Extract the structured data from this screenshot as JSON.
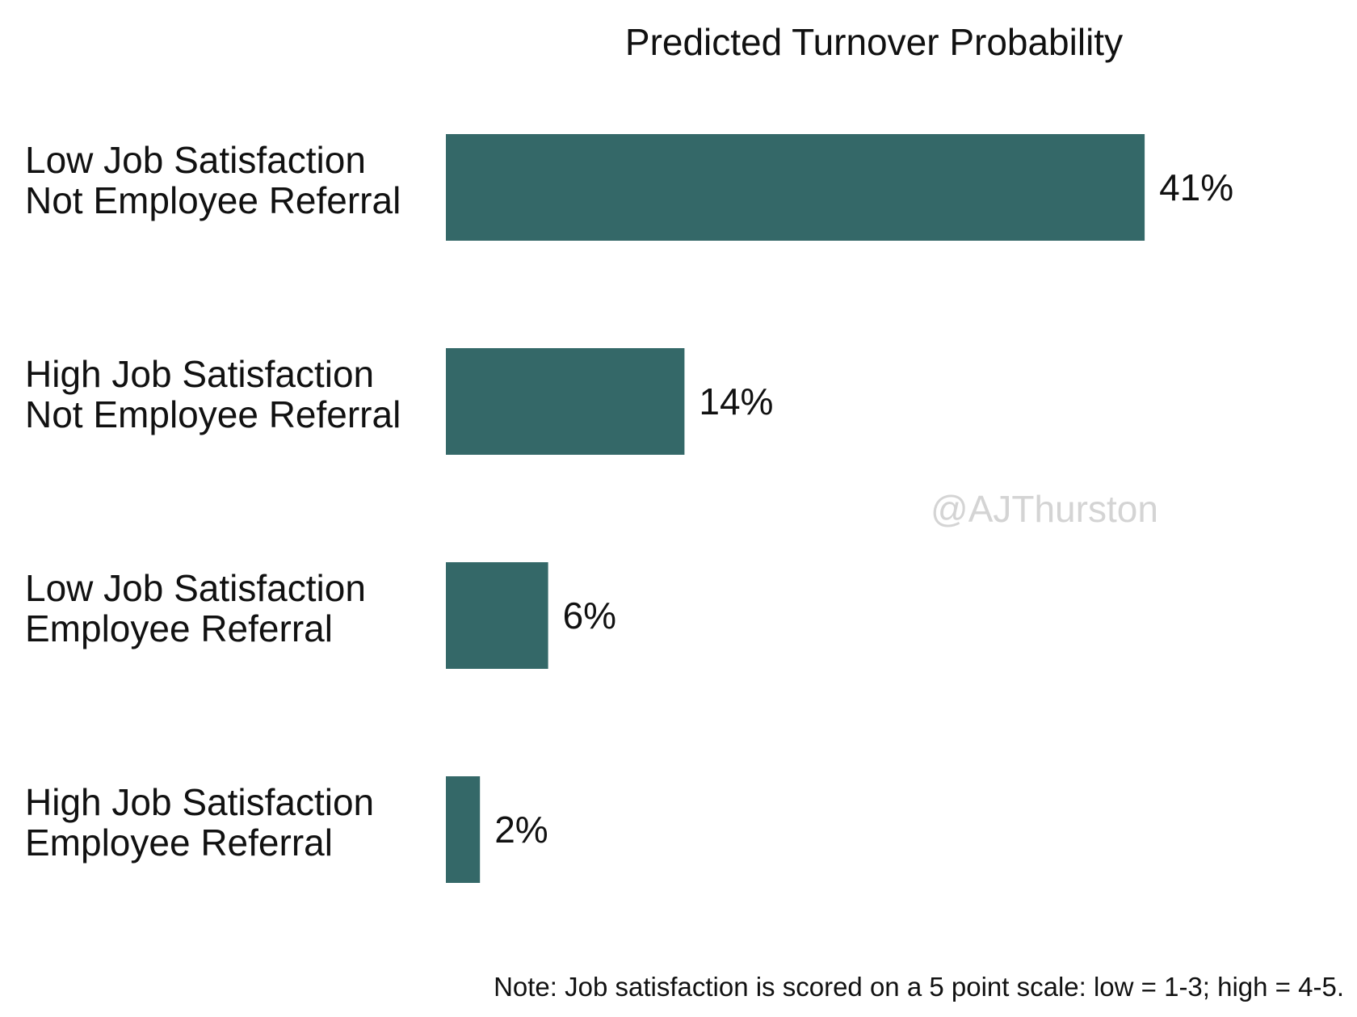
{
  "chart_data": {
    "type": "bar",
    "orientation": "horizontal",
    "title": "Predicted Turnover Probability",
    "xlabel": "",
    "ylabel": "",
    "categories": [
      [
        "Low Job Satisfaction",
        "Not Employee Referral"
      ],
      [
        "High Job Satisfaction",
        "Not Employee Referral"
      ],
      [
        "Low Job Satisfaction",
        "Employee Referral"
      ],
      [
        "High Job Satisfaction",
        "Employee Referral"
      ]
    ],
    "values": [
      41,
      14,
      6,
      2
    ],
    "value_labels": [
      "41%",
      "14%",
      "6%",
      "2%"
    ],
    "xlim": [
      0,
      50
    ],
    "grid": false,
    "legend": "none",
    "bar_color": "#346868",
    "watermark": "@AJThurston",
    "note": "Note: Job satisfaction is scored on a 5 point scale: low = 1-3; high = 4-5."
  }
}
